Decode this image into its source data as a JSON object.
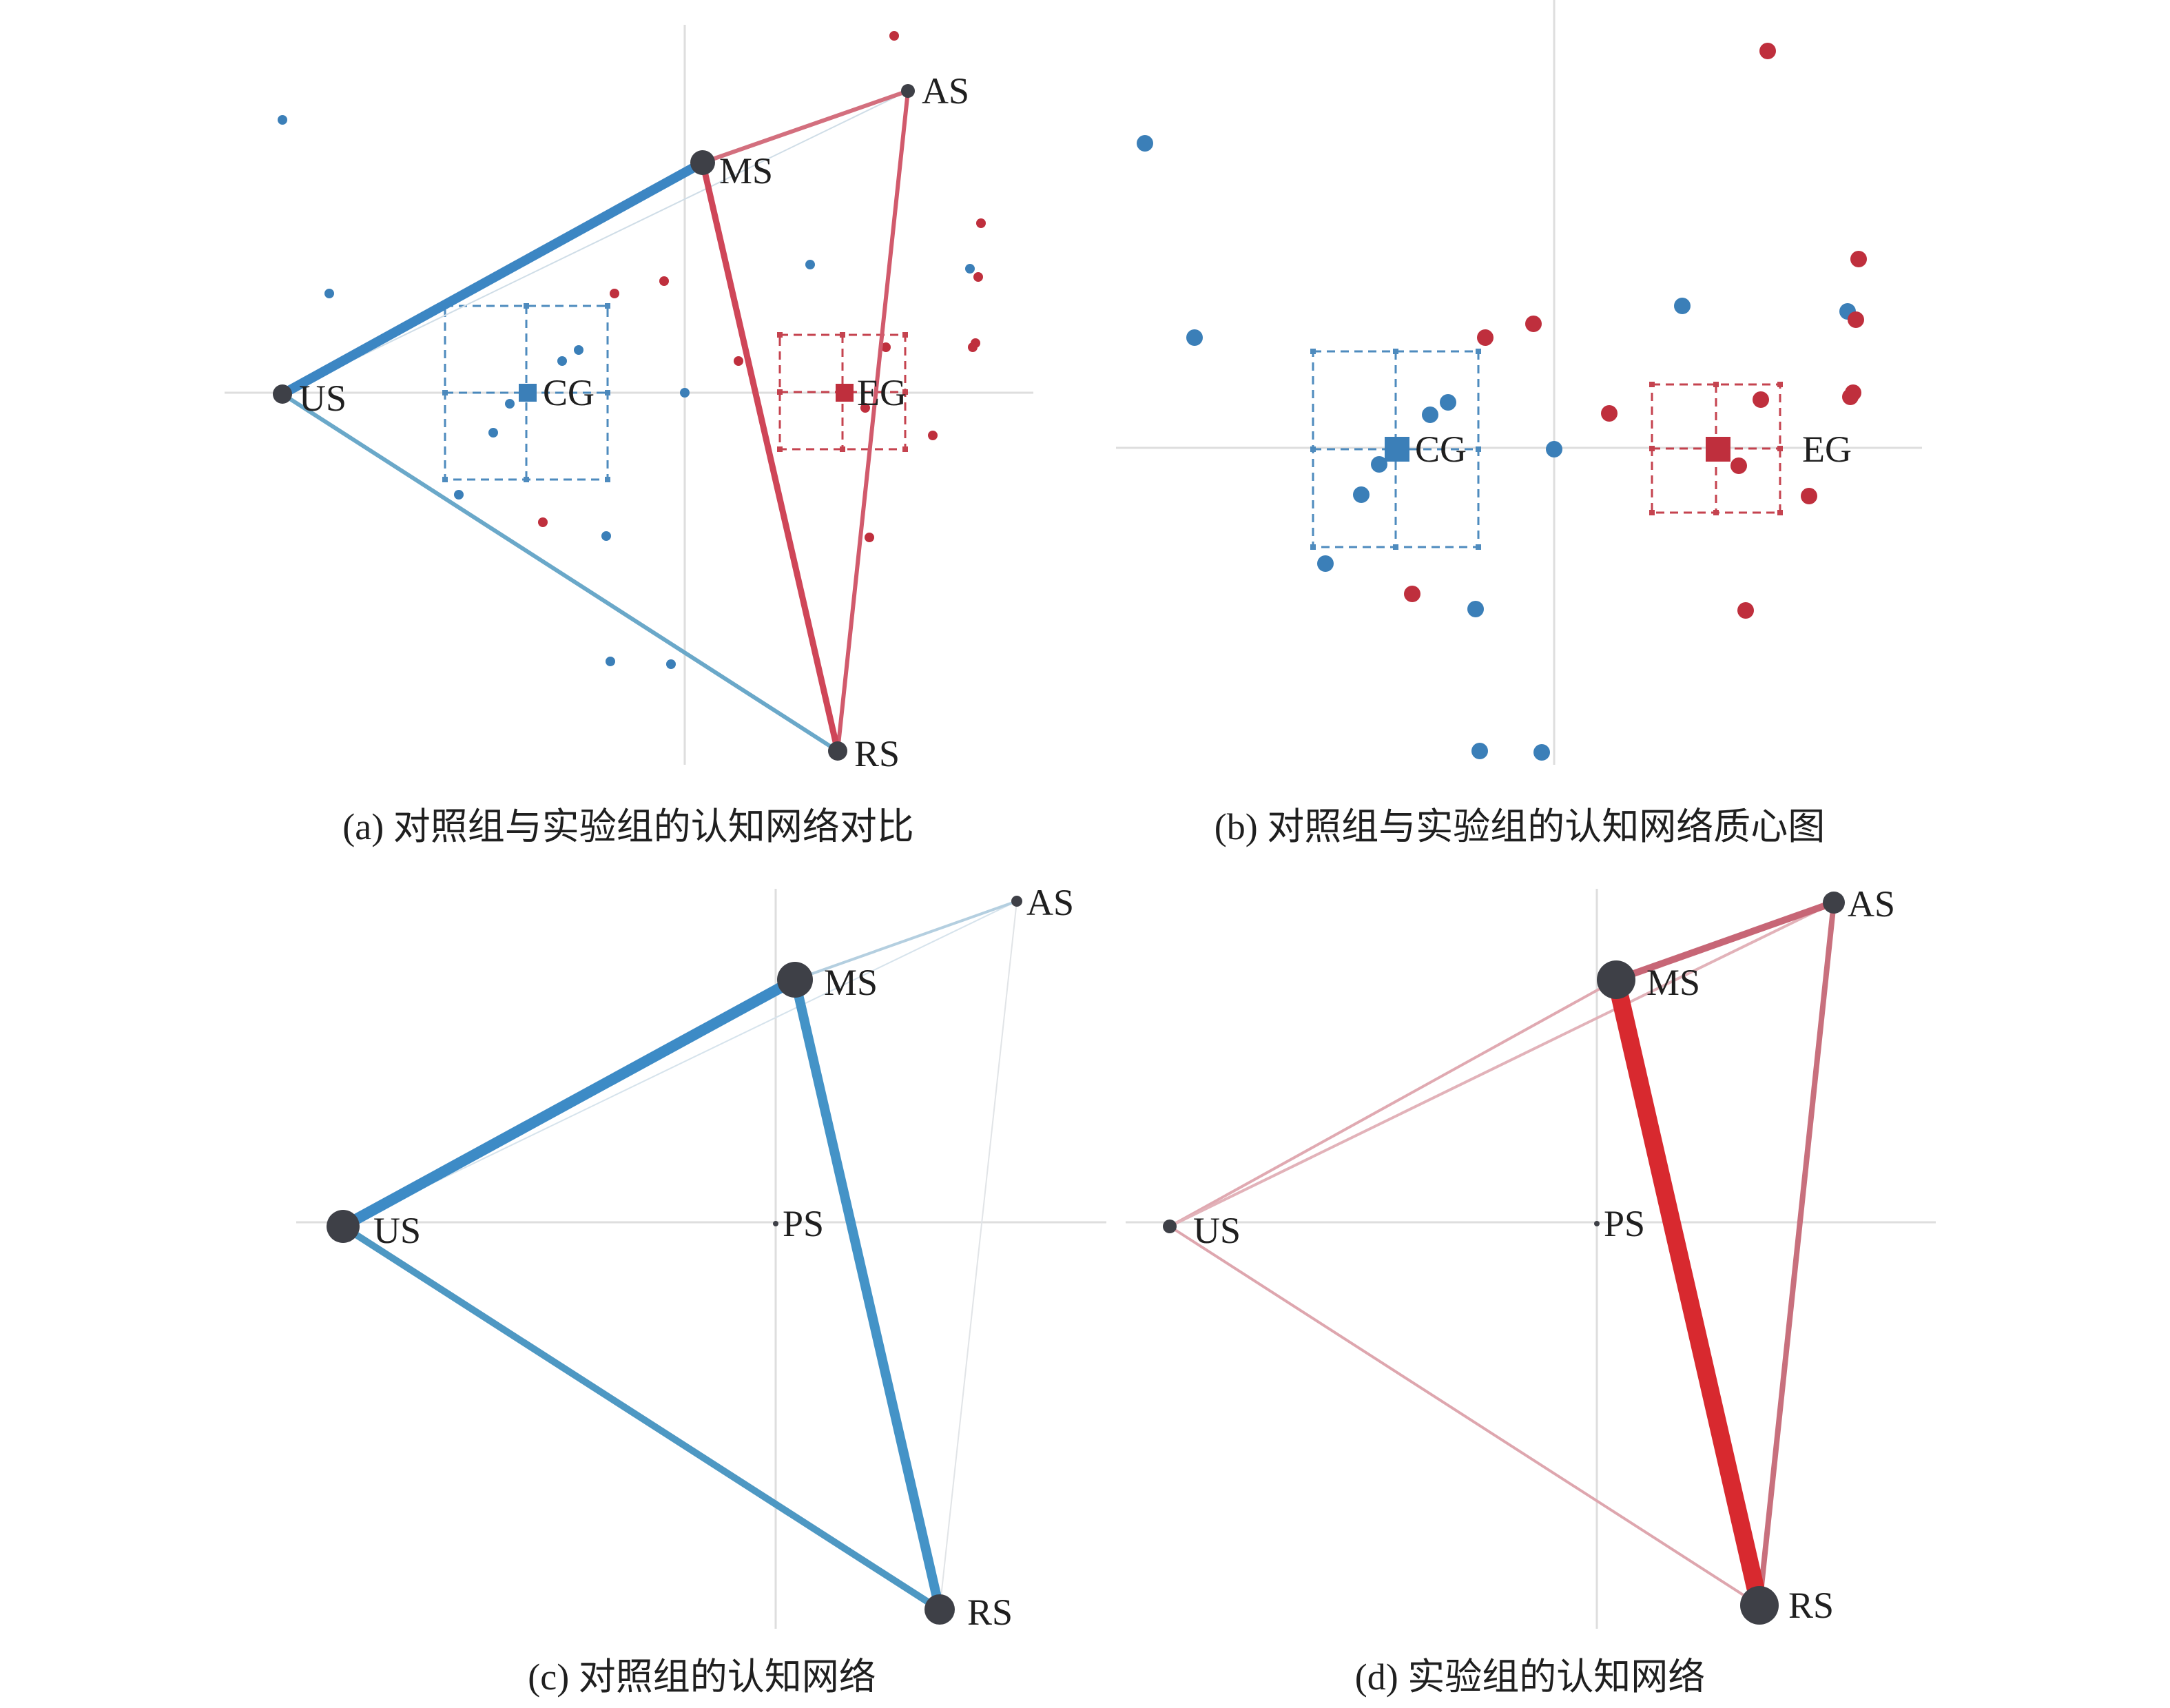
{
  "colors": {
    "control": "#3b7fb8",
    "experimental": "#bf2f3d",
    "node": "#3e4047",
    "axis": "#dedede",
    "text": "#1f1f1f"
  },
  "panels": {
    "a": {
      "caption": "(a) 对照组与实验组的认知网络对比",
      "nodes": [
        {
          "label": "US"
        },
        {
          "label": "MS"
        },
        {
          "label": "AS"
        },
        {
          "label": "RS"
        }
      ],
      "edges": [
        {
          "from": 0,
          "to": 2,
          "color": "#cfdde7"
        },
        {
          "from": 0,
          "to": 3,
          "color": "#6aa8c9"
        },
        {
          "from": 1,
          "to": 2,
          "color": "#d36f7e"
        },
        {
          "from": 2,
          "to": 3,
          "color": "#d15a6c"
        },
        {
          "from": 1,
          "to": 3,
          "color": "#cf4658"
        },
        {
          "from": 0,
          "to": 1,
          "color": "#3c86c3"
        }
      ],
      "centroids": [
        {
          "label": "CG"
        },
        {
          "label": "EG"
        }
      ]
    },
    "b": {
      "caption": "(b) 对照组与实验组的认知网络质心图",
      "centroids": [
        {
          "label": "CG"
        },
        {
          "label": "EG"
        }
      ]
    },
    "c": {
      "caption": "(c) 对照组的认知网络",
      "nodes": [
        {
          "label": "US"
        },
        {
          "label": "MS"
        },
        {
          "label": "AS"
        },
        {
          "label": "RS"
        },
        {
          "label": "PS"
        }
      ],
      "edges": [
        {
          "from": 2,
          "to": 3,
          "color": "#e1e4e7"
        },
        {
          "from": 0,
          "to": 2,
          "color": "#d6e3ec"
        },
        {
          "from": 1,
          "to": 2,
          "color": "#b4cfe0"
        },
        {
          "from": 0,
          "to": 3,
          "color": "#4e98c3"
        },
        {
          "from": 1,
          "to": 3,
          "color": "#4493c7"
        },
        {
          "from": 0,
          "to": 1,
          "color": "#3d8bc6"
        }
      ]
    },
    "d": {
      "caption": "(d) 实验组的认知网络",
      "nodes": [
        {
          "label": "US"
        },
        {
          "label": "MS"
        },
        {
          "label": "AS"
        },
        {
          "label": "RS"
        },
        {
          "label": "PS"
        }
      ],
      "edges": [
        {
          "from": 0,
          "to": 1,
          "color": "#e0a9b1"
        },
        {
          "from": 0,
          "to": 2,
          "color": "#e2b2b9"
        },
        {
          "from": 0,
          "to": 3,
          "color": "#dea6ae"
        },
        {
          "from": 2,
          "to": 3,
          "color": "#c8707d"
        },
        {
          "from": 1,
          "to": 2,
          "color": "#c76676"
        },
        {
          "from": 1,
          "to": 3,
          "color": "#d8292f"
        }
      ]
    }
  }
}
